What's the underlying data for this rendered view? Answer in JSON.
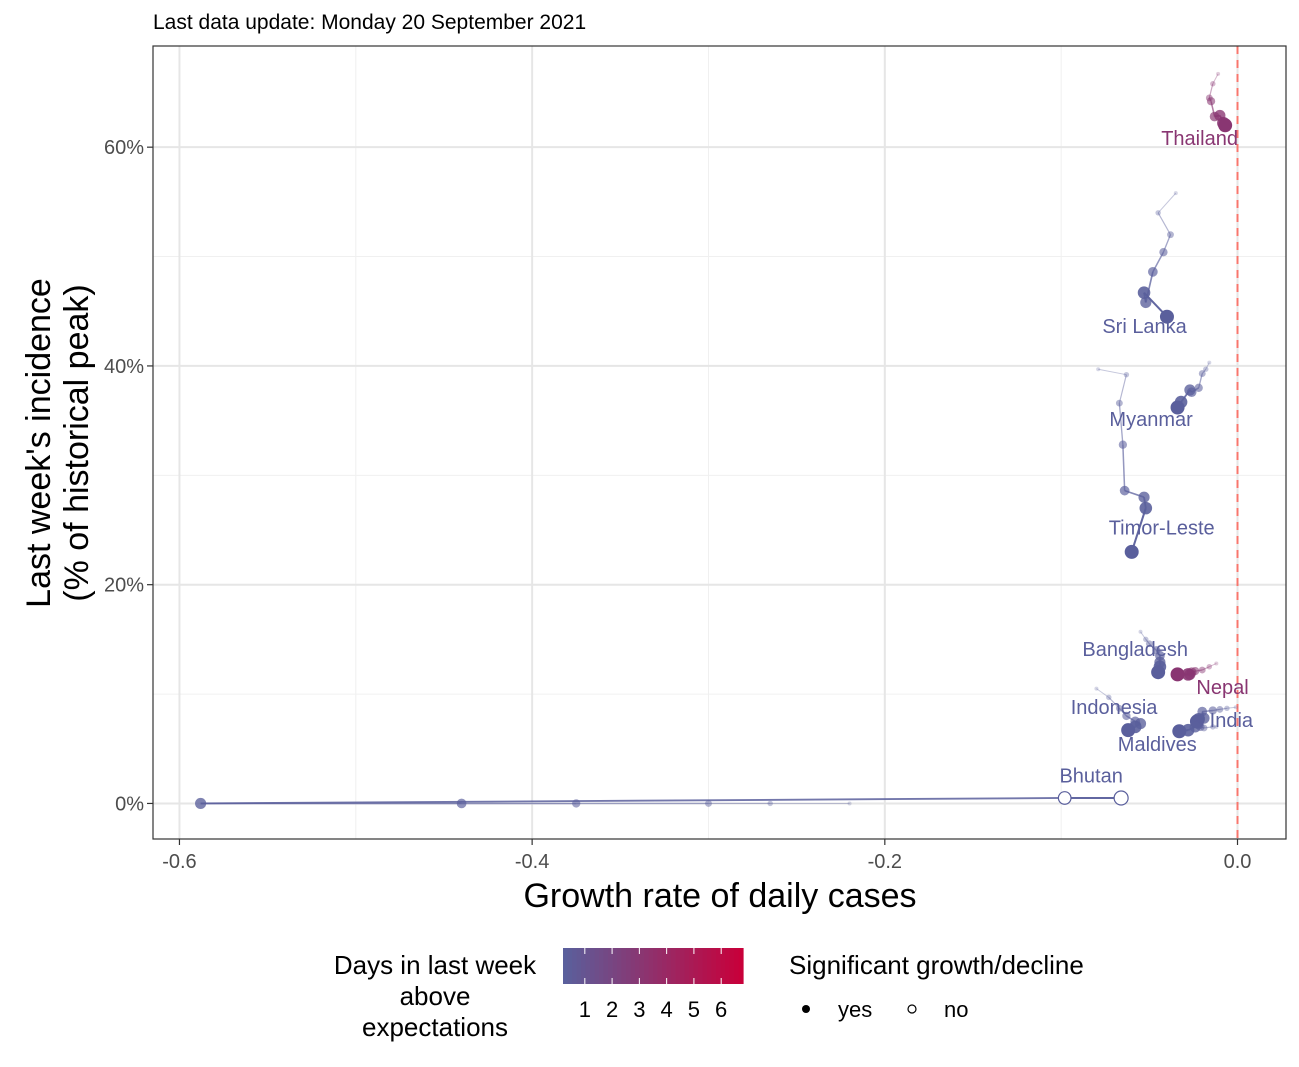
{
  "chart_data": {
    "type": "scatter",
    "subtitle": "Last data update: Monday 20 September 2021",
    "xlabel": "Growth rate of daily cases",
    "ylabel_lines": [
      "Last week's incidence",
      "(% of historical peak)"
    ],
    "xlim": [
      -0.615,
      0.0275
    ],
    "ylim": [
      -0.0325,
      0.6925
    ],
    "x_ticks": [
      {
        "value": -0.6,
        "label": "-0.6"
      },
      {
        "value": -0.4,
        "label": "-0.4"
      },
      {
        "value": -0.2,
        "label": "-0.2"
      },
      {
        "value": 0.0,
        "label": "0.0"
      }
    ],
    "y_ticks": [
      {
        "value": 0.0,
        "label": "0%"
      },
      {
        "value": 0.2,
        "label": "20%"
      },
      {
        "value": 0.4,
        "label": "40%"
      },
      {
        "value": 0.6,
        "label": "60%"
      }
    ],
    "grid": true,
    "reference_line": {
      "x": 0.0,
      "color": "#f8766d",
      "style": "dashed"
    },
    "color_scale": {
      "low": "#5a5f9c",
      "high": "#c8003a",
      "min": 0,
      "max": 7
    },
    "series": [
      {
        "name": "Thailand",
        "days_above": 3,
        "points": [
          [
            -0.011,
            0.667
          ],
          [
            -0.014,
            0.658
          ],
          [
            -0.016,
            0.645
          ],
          [
            -0.015,
            0.642
          ],
          [
            -0.013,
            0.628
          ],
          [
            -0.01,
            0.629
          ],
          [
            -0.008,
            0.622
          ],
          [
            -0.007,
            0.62
          ]
        ],
        "significant": [
          true,
          true,
          true,
          true,
          true,
          true,
          true,
          true
        ]
      },
      {
        "name": "Sri Lanka",
        "days_above": 0,
        "points": [
          [
            -0.035,
            0.558
          ],
          [
            -0.045,
            0.54
          ],
          [
            -0.038,
            0.52
          ],
          [
            -0.042,
            0.504
          ],
          [
            -0.048,
            0.486
          ],
          [
            -0.052,
            0.458
          ],
          [
            -0.053,
            0.467
          ],
          [
            -0.04,
            0.445
          ]
        ],
        "significant": [
          true,
          true,
          true,
          true,
          true,
          true,
          true,
          true
        ]
      },
      {
        "name": "Myanmar",
        "days_above": 0,
        "points": [
          [
            -0.016,
            0.403
          ],
          [
            -0.018,
            0.397
          ],
          [
            -0.02,
            0.393
          ],
          [
            -0.022,
            0.38
          ],
          [
            -0.026,
            0.376
          ],
          [
            -0.027,
            0.378
          ],
          [
            -0.032,
            0.367
          ],
          [
            -0.034,
            0.362
          ]
        ],
        "significant": [
          true,
          true,
          true,
          true,
          true,
          true,
          true,
          true
        ]
      },
      {
        "name": "Timor-Leste",
        "days_above": 0,
        "points": [
          [
            -0.079,
            0.397
          ],
          [
            -0.063,
            0.392
          ],
          [
            -0.067,
            0.366
          ],
          [
            -0.065,
            0.328
          ],
          [
            -0.064,
            0.286
          ],
          [
            -0.053,
            0.28
          ],
          [
            -0.052,
            0.27
          ],
          [
            -0.06,
            0.23
          ]
        ],
        "significant": [
          true,
          true,
          true,
          true,
          true,
          true,
          true,
          true
        ]
      },
      {
        "name": "Bangladesh",
        "days_above": 0,
        "points": [
          [
            -0.055,
            0.157
          ],
          [
            -0.052,
            0.15
          ],
          [
            -0.05,
            0.146
          ],
          [
            -0.046,
            0.14
          ],
          [
            -0.044,
            0.135
          ],
          [
            -0.044,
            0.129
          ],
          [
            -0.044,
            0.125
          ],
          [
            -0.045,
            0.12
          ]
        ],
        "significant": [
          true,
          true,
          true,
          true,
          true,
          true,
          true,
          true
        ]
      },
      {
        "name": "Nepal",
        "days_above": 3,
        "points": [
          [
            -0.012,
            0.128
          ],
          [
            -0.016,
            0.125
          ],
          [
            -0.02,
            0.122
          ],
          [
            -0.024,
            0.121
          ],
          [
            -0.026,
            0.12
          ],
          [
            -0.027,
            0.118
          ],
          [
            -0.028,
            0.118
          ],
          [
            -0.034,
            0.118
          ]
        ],
        "significant": [
          true,
          true,
          true,
          true,
          true,
          true,
          true,
          true
        ]
      },
      {
        "name": "Indonesia",
        "days_above": 0,
        "points": [
          [
            -0.08,
            0.105
          ],
          [
            -0.073,
            0.097
          ],
          [
            -0.067,
            0.087
          ],
          [
            -0.063,
            0.08
          ],
          [
            -0.058,
            0.075
          ],
          [
            -0.055,
            0.073
          ],
          [
            -0.058,
            0.07
          ],
          [
            -0.062,
            0.067
          ]
        ],
        "significant": [
          true,
          true,
          true,
          true,
          true,
          true,
          true,
          true
        ]
      },
      {
        "name": "India",
        "days_above": 0,
        "points": [
          [
            -0.001,
            0.088
          ],
          [
            -0.006,
            0.087
          ],
          [
            -0.01,
            0.086
          ],
          [
            -0.014,
            0.085
          ],
          [
            -0.02,
            0.084
          ],
          [
            -0.019,
            0.078
          ],
          [
            -0.022,
            0.077
          ],
          [
            -0.023,
            0.075
          ]
        ],
        "significant": [
          true,
          true,
          true,
          true,
          true,
          true,
          true,
          true
        ]
      },
      {
        "name": "Maldives",
        "days_above": 0,
        "points": [
          [
            -0.012,
            0.07
          ],
          [
            -0.014,
            0.07
          ],
          [
            -0.019,
            0.069
          ],
          [
            -0.021,
            0.07
          ],
          [
            -0.022,
            0.072
          ],
          [
            -0.024,
            0.07
          ],
          [
            -0.028,
            0.067
          ],
          [
            -0.033,
            0.066
          ]
        ],
        "significant": [
          true,
          true,
          true,
          true,
          true,
          true,
          true,
          true
        ]
      },
      {
        "name": "Bhutan",
        "days_above": 0,
        "points": [
          [
            -0.22,
            0.0
          ],
          [
            -0.265,
            0.0
          ],
          [
            -0.3,
            0.0
          ],
          [
            -0.375,
            0.0
          ],
          [
            -0.44,
            0.0
          ],
          [
            -0.588,
            0.0
          ],
          [
            -0.098,
            0.005
          ],
          [
            -0.066,
            0.005
          ]
        ],
        "significant": [
          true,
          true,
          true,
          true,
          true,
          true,
          false,
          false
        ]
      }
    ],
    "labels": [
      {
        "series": "Thailand",
        "text": "Thailand",
        "x": -0.0215,
        "y": 0.602,
        "days_above": 3
      },
      {
        "series": "Sri Lanka",
        "text": "Sri Lanka",
        "x": -0.0527,
        "y": 0.43,
        "days_above": 0
      },
      {
        "series": "Myanmar",
        "text": "Myanmar",
        "x": -0.049,
        "y": 0.345,
        "days_above": 0
      },
      {
        "series": "Timor-Leste",
        "text": "Timor-Leste",
        "x": -0.043,
        "y": 0.246,
        "days_above": 0
      },
      {
        "series": "Bangladesh",
        "text": "Bangladesh",
        "x": -0.058,
        "y": 0.135,
        "days_above": 0
      },
      {
        "series": "Nepal",
        "text": "Nepal",
        "x": -0.0085,
        "y": 0.1,
        "days_above": 3
      },
      {
        "series": "Indonesia",
        "text": "Indonesia",
        "x": -0.07,
        "y": 0.082,
        "days_above": 0
      },
      {
        "series": "India",
        "text": "India",
        "x": -0.0035,
        "y": 0.07,
        "days_above": 0
      },
      {
        "series": "Maldives",
        "text": "Maldives",
        "x": -0.0455,
        "y": 0.048,
        "days_above": 0
      },
      {
        "series": "Bhutan",
        "text": "Bhutan",
        "x": -0.083,
        "y": 0.019,
        "days_above": 0
      }
    ],
    "legend": {
      "placement": "bottom",
      "color_title_lines": [
        "Days in last week",
        "above",
        "expectations"
      ],
      "color_ticks": [
        "1",
        "2",
        "3",
        "4",
        "5",
        "6"
      ],
      "shape_title": "Significant growth/decline",
      "shape_items": [
        {
          "label": "yes",
          "filled": true
        },
        {
          "label": "no",
          "filled": false
        }
      ]
    }
  }
}
